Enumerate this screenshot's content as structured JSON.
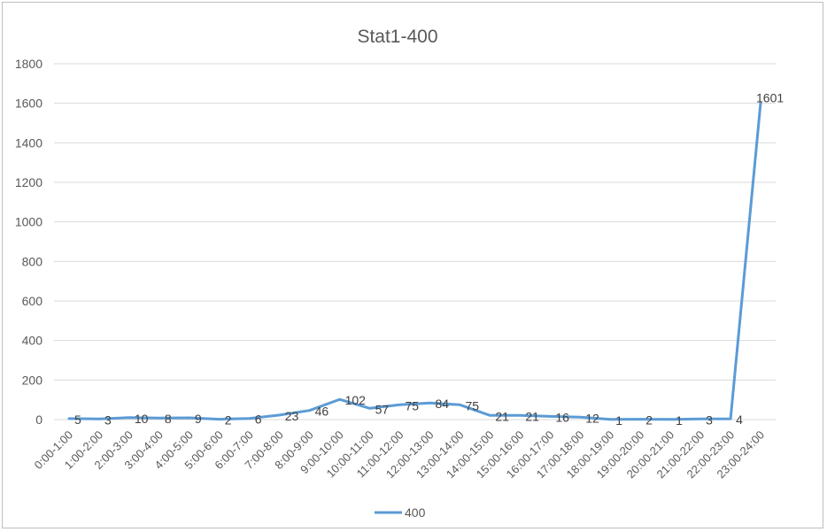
{
  "chart_data": {
    "type": "line",
    "title": "Stat1-400",
    "xlabel": "",
    "ylabel": "",
    "categories": [
      "0:00-1:00",
      "1:00-2:00",
      "2:00-3:00",
      "3:00-4:00",
      "4:00-5:00",
      "5:00-6:00",
      "6:00-7:00",
      "7:00-8:00",
      "8:00-9:00",
      "9:00-10:00",
      "10:00-11:00",
      "11:00-12:00",
      "12:00-13:00",
      "13:00-14:00",
      "14:00-15:00",
      "15:00-16:00",
      "16:00-17:00",
      "17:00-18:00",
      "18:00-19:00",
      "19:00-20:00",
      "20:00-21:00",
      "21:00-22:00",
      "22:00-23:00",
      "23:00-24:00"
    ],
    "series": [
      {
        "name": "400",
        "color": "#5b9bd5",
        "values": [
          5,
          3,
          10,
          8,
          9,
          2,
          6,
          23,
          46,
          102,
          57,
          75,
          84,
          75,
          21,
          21,
          16,
          12,
          1,
          2,
          1,
          3,
          4,
          1601
        ]
      }
    ],
    "ylim": [
      0,
      1800
    ],
    "yticks": [
      0,
      200,
      400,
      600,
      800,
      1000,
      1200,
      1400,
      1600,
      1800
    ],
    "grid": true,
    "legend_position": "bottom",
    "data_labels": true,
    "gridline_color": "#d9d9d9",
    "axis_color": "#d9d9d9"
  }
}
